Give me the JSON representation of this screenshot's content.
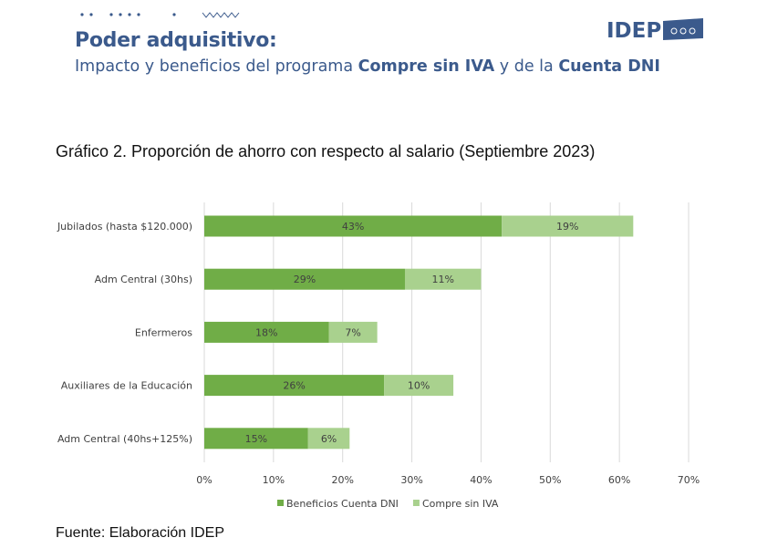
{
  "header": {
    "title": "Poder adquisitivo:",
    "subtitle_parts": [
      "Impacto y beneficios del programa ",
      "Compre sin IVA",
      " y de la ",
      "Cuenta DNI"
    ],
    "logo_text": "IDEP",
    "brand_color": "#3b5a8c"
  },
  "chart_title": "Gráfico 2. Proporción de ahorro con respecto al salario (Septiembre 2023)",
  "source": "Fuente: Elaboración IDEP",
  "chart_data": {
    "type": "bar",
    "orientation": "horizontal",
    "stacked": true,
    "categories": [
      "Jubilados (hasta $120.000)",
      "Adm Central (30hs)",
      "Enfermeros",
      "Auxiliares de la Educación",
      "Adm Central (40hs+125%)"
    ],
    "series": [
      {
        "name": "Beneficios Cuenta DNI",
        "color": "#70ad47",
        "values": [
          43,
          29,
          18,
          26,
          15
        ],
        "labels": [
          "43%",
          "29%",
          "18%",
          "26%",
          "15%"
        ]
      },
      {
        "name": "Compre sin IVA",
        "color": "#a9d18e",
        "values": [
          19,
          11,
          7,
          10,
          6
        ],
        "labels": [
          "19%",
          "11%",
          "7%",
          "10%",
          "6%"
        ]
      }
    ],
    "xlim": [
      0,
      70
    ],
    "xticks": [
      "0%",
      "10%",
      "20%",
      "30%",
      "40%",
      "50%",
      "60%",
      "70%"
    ],
    "grid": true,
    "legend": "bottom"
  }
}
